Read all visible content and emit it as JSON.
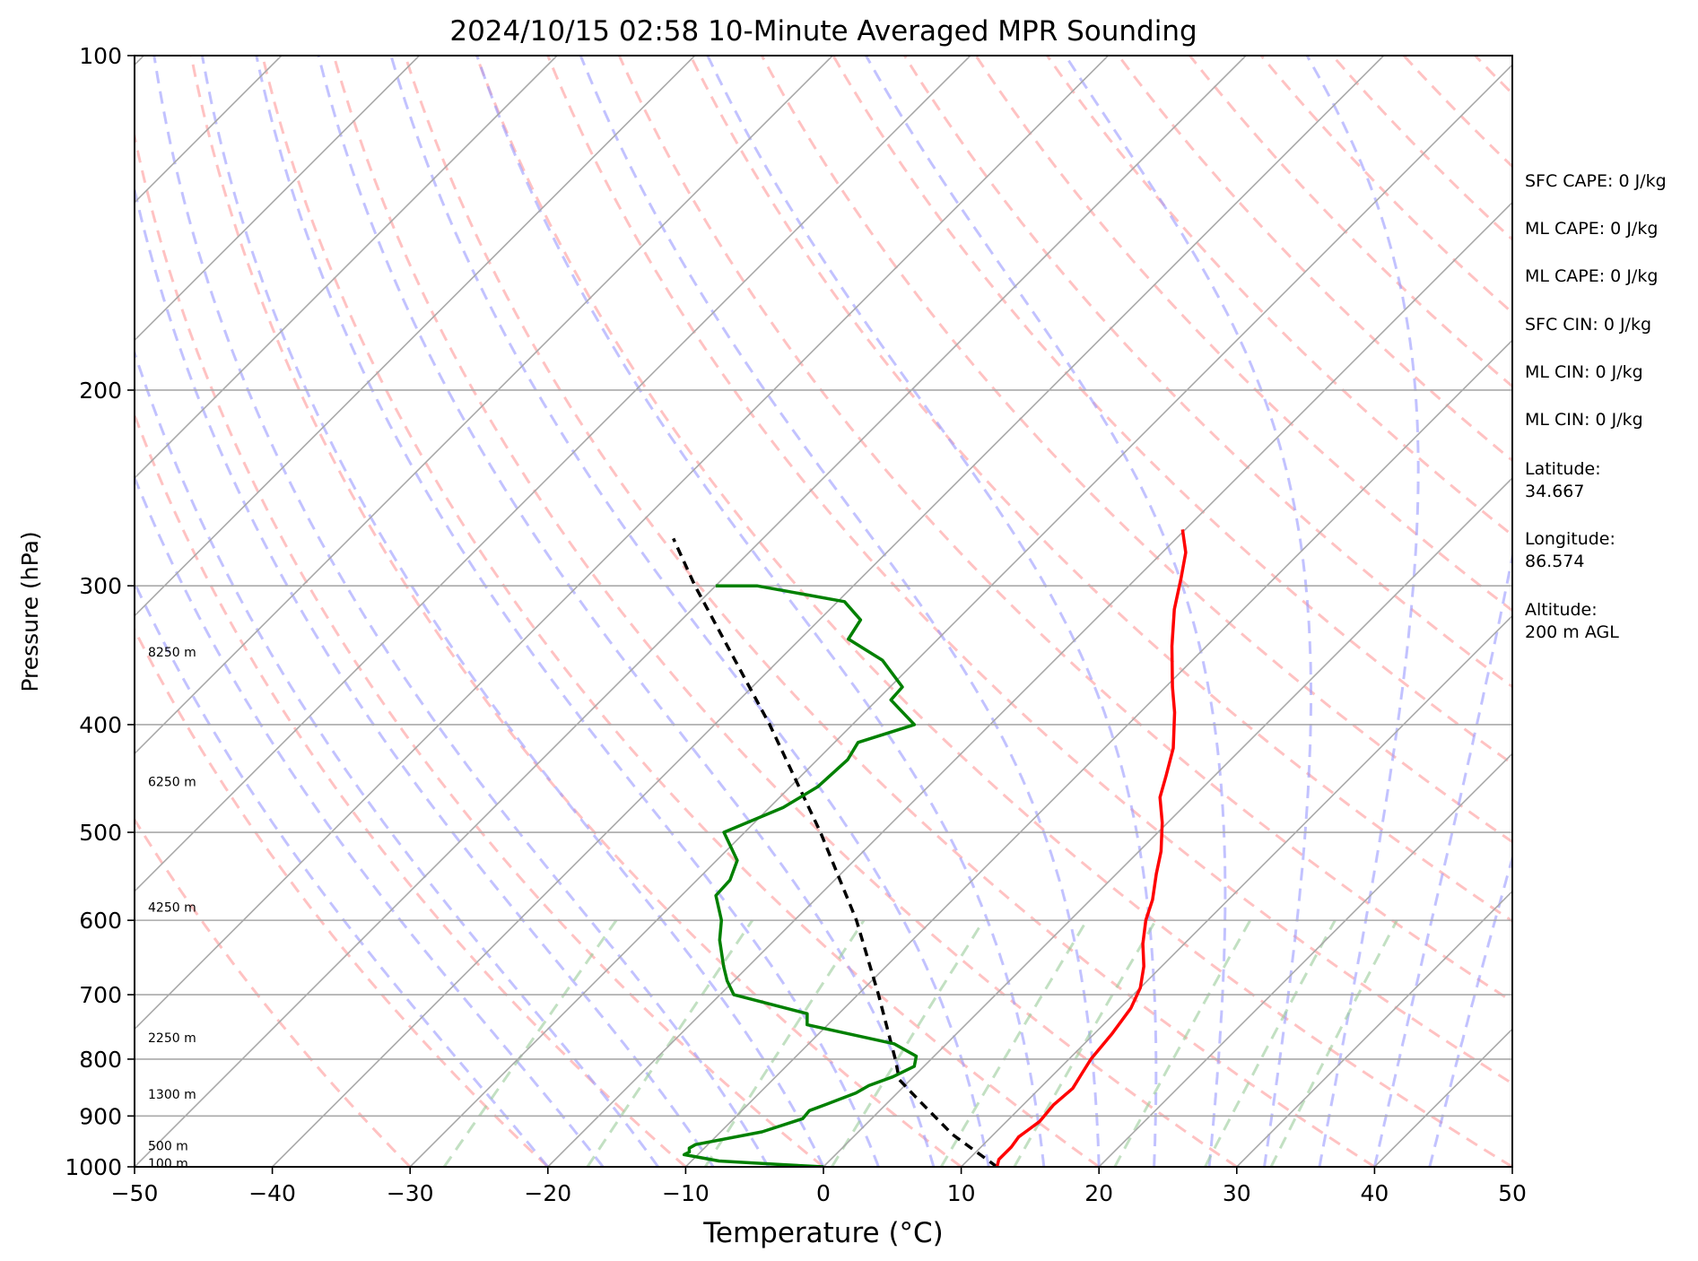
{
  "chart_data": {
    "type": "skew-t",
    "title": "2024/10/15 02:58 10-Minute Averaged MPR Sounding",
    "xlabel": "Temperature (°C)",
    "ylabel": "Pressure (hPa)",
    "xlim": [
      -50,
      50
    ],
    "ylim_pressure": [
      1000,
      100
    ],
    "y_scale": "log",
    "x_ticks": [
      -50,
      -40,
      -30,
      -20,
      -10,
      0,
      10,
      20,
      30,
      40,
      50
    ],
    "x_tick_labels": [
      "−50",
      "−40",
      "−30",
      "−20",
      "−10",
      "0",
      "10",
      "20",
      "30",
      "40",
      "50"
    ],
    "y_ticks": [
      100,
      200,
      300,
      400,
      500,
      600,
      700,
      800,
      900,
      1000
    ],
    "y_tick_labels": [
      "100",
      "200",
      "300",
      "400",
      "500",
      "600",
      "700",
      "800",
      "900",
      "1000"
    ],
    "grid": true,
    "temperature": {
      "color": "#ff0000",
      "points": [
        {
          "p": 1000,
          "t": 12.6
        },
        {
          "p": 985,
          "t": 12.2
        },
        {
          "p": 960,
          "t": 12.2
        },
        {
          "p": 940,
          "t": 12.0
        },
        {
          "p": 910,
          "t": 12.4
        },
        {
          "p": 880,
          "t": 12.2
        },
        {
          "p": 850,
          "t": 12.4
        },
        {
          "p": 825,
          "t": 12.0
        },
        {
          "p": 800,
          "t": 11.6
        },
        {
          "p": 760,
          "t": 11.3
        },
        {
          "p": 720,
          "t": 10.8
        },
        {
          "p": 690,
          "t": 10.0
        },
        {
          "p": 660,
          "t": 8.7
        },
        {
          "p": 630,
          "t": 7.0
        },
        {
          "p": 600,
          "t": 5.5
        },
        {
          "p": 575,
          "t": 4.5
        },
        {
          "p": 545,
          "t": 2.9
        },
        {
          "p": 520,
          "t": 1.6
        },
        {
          "p": 490,
          "t": -0.4
        },
        {
          "p": 465,
          "t": -2.4
        },
        {
          "p": 445,
          "t": -3.5
        },
        {
          "p": 420,
          "t": -5.0
        },
        {
          "p": 390,
          "t": -7.5
        },
        {
          "p": 370,
          "t": -9.5
        },
        {
          "p": 340,
          "t": -12.5
        },
        {
          "p": 315,
          "t": -15.0
        },
        {
          "p": 295,
          "t": -16.8
        },
        {
          "p": 280,
          "t": -18.3
        },
        {
          "p": 267,
          "t": -20.2
        }
      ]
    },
    "dewpoint": {
      "color": "#008000",
      "points": [
        {
          "p": 1000,
          "t": 0.0
        },
        {
          "p": 995,
          "t": -3.5
        },
        {
          "p": 988,
          "t": -8.0
        },
        {
          "p": 975,
          "t": -11.0
        },
        {
          "p": 970,
          "t": -10.8
        },
        {
          "p": 962,
          "t": -11.1
        },
        {
          "p": 955,
          "t": -10.9
        },
        {
          "p": 930,
          "t": -7.0
        },
        {
          "p": 905,
          "t": -5.0
        },
        {
          "p": 890,
          "t": -5.1
        },
        {
          "p": 878,
          "t": -4.3
        },
        {
          "p": 858,
          "t": -3.0
        },
        {
          "p": 845,
          "t": -2.6
        },
        {
          "p": 830,
          "t": -1.5
        },
        {
          "p": 812,
          "t": -0.7
        },
        {
          "p": 795,
          "t": -1.3
        },
        {
          "p": 775,
          "t": -3.8
        },
        {
          "p": 745,
          "t": -11.5
        },
        {
          "p": 728,
          "t": -12.3
        },
        {
          "p": 700,
          "t": -19.0
        },
        {
          "p": 680,
          "t": -20.5
        },
        {
          "p": 660,
          "t": -21.8
        },
        {
          "p": 625,
          "t": -24.0
        },
        {
          "p": 600,
          "t": -25.3
        },
        {
          "p": 570,
          "t": -27.5
        },
        {
          "p": 552,
          "t": -27.6
        },
        {
          "p": 530,
          "t": -28.5
        },
        {
          "p": 500,
          "t": -31.5
        },
        {
          "p": 475,
          "t": -29.0
        },
        {
          "p": 455,
          "t": -28.0
        },
        {
          "p": 430,
          "t": -27.8
        },
        {
          "p": 415,
          "t": -28.3
        },
        {
          "p": 400,
          "t": -25.5
        },
        {
          "p": 380,
          "t": -29.0
        },
        {
          "p": 370,
          "t": -29.1
        },
        {
          "p": 350,
          "t": -32.5
        },
        {
          "p": 335,
          "t": -36.5
        },
        {
          "p": 322,
          "t": -37.0
        },
        {
          "p": 310,
          "t": -39.5
        },
        {
          "p": 300,
          "t": -47.0
        },
        {
          "p": 300,
          "t": -50.0
        }
      ]
    },
    "parcel_profile": {
      "color": "#000000",
      "style": "dashed",
      "points": [
        {
          "p": 1000,
          "t": 12.6
        },
        {
          "p": 935,
          "t": 7.0
        },
        {
          "p": 870,
          "t": 2.0
        },
        {
          "p": 835,
          "t": -0.8
        },
        {
          "p": 800,
          "t": -2.6
        },
        {
          "p": 700,
          "t": -8.5
        },
        {
          "p": 600,
          "t": -15.5
        },
        {
          "p": 500,
          "t": -24.5
        },
        {
          "p": 400,
          "t": -36.0
        },
        {
          "p": 300,
          "t": -51.5
        },
        {
          "p": 272,
          "t": -56.5
        }
      ]
    },
    "height_labels": [
      {
        "p": 344,
        "text": "8250 m"
      },
      {
        "p": 450,
        "text": "6250 m"
      },
      {
        "p": 584,
        "text": "4250 m"
      },
      {
        "p": 765,
        "text": "2250 m"
      },
      {
        "p": 860,
        "text": "1300 m"
      },
      {
        "p": 957,
        "text": "500 m"
      },
      {
        "p": 993,
        "text": "100 m"
      }
    ],
    "isotherm_color": "#a9a9a9",
    "dry_adiabat_color": "#ff9999",
    "moist_adiabat_color": "#9999ff",
    "mixing_ratio_color": "#99cc99"
  },
  "stats": [
    "SFC CAPE: 0 J/kg",
    "ML CAPE: 0 J/kg",
    "ML CAPE: 0 J/kg",
    "SFC CIN: 0 J/kg",
    "ML CIN: 0 J/kg",
    "ML CIN: 0 J/kg",
    "Latitude:\n34.667",
    "Longitude:\n86.574",
    "Altitude:\n200 m AGL"
  ]
}
